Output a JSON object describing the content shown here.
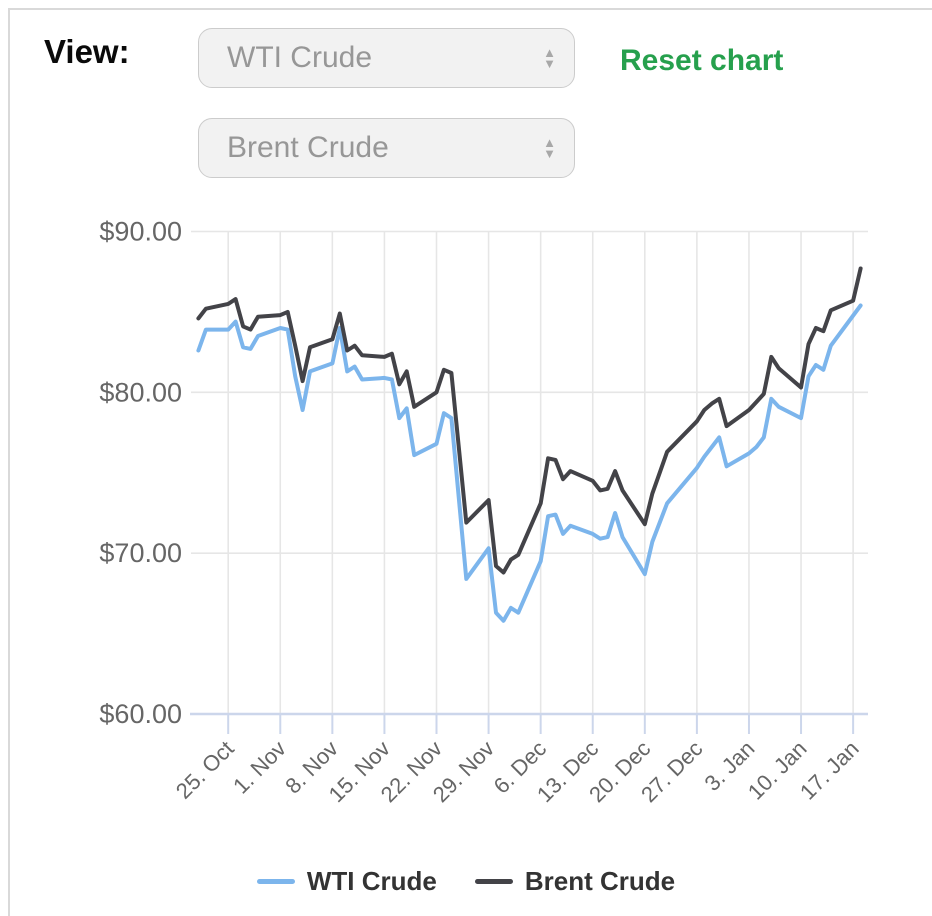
{
  "header": {
    "view_label": "View:",
    "reset_label": "Reset chart",
    "selects": [
      {
        "value": "WTI Crude"
      },
      {
        "value": "Brent Crude"
      }
    ],
    "arrow_up_glyph": "▲",
    "arrow_down_glyph": "▼"
  },
  "colors": {
    "reset_link": "#26a04d",
    "select_background": "#f2f2f2",
    "select_text": "#979797",
    "frame_border": "#d9d9d9"
  },
  "chart_data": {
    "type": "line",
    "title": "",
    "xlabel": "",
    "ylabel": "",
    "ylim": [
      60,
      90
    ],
    "xlim": [
      "2021-10-20",
      "2022-01-19"
    ],
    "grid": true,
    "legend_position": "bottom",
    "grid_color": "#e6e6e6",
    "axis_color": "#ccd6eb",
    "tick_color": "#ccd6eb",
    "label_color": "#666666",
    "y_ticks": [
      {
        "value": 90,
        "label": "$90.00"
      },
      {
        "value": 80,
        "label": "$80.00"
      },
      {
        "value": 70,
        "label": "$70.00"
      },
      {
        "value": 60,
        "label": "$60.00"
      }
    ],
    "x_ticks": [
      {
        "date": "2021-10-25",
        "label": "25. Oct"
      },
      {
        "date": "2021-11-01",
        "label": "1. Nov"
      },
      {
        "date": "2021-11-08",
        "label": "8. Nov"
      },
      {
        "date": "2021-11-15",
        "label": "15. Nov"
      },
      {
        "date": "2021-11-22",
        "label": "22. Nov"
      },
      {
        "date": "2021-11-29",
        "label": "29. Nov"
      },
      {
        "date": "2021-12-06",
        "label": "6. Dec"
      },
      {
        "date": "2021-12-13",
        "label": "13. Dec"
      },
      {
        "date": "2021-12-20",
        "label": "20. Dec"
      },
      {
        "date": "2021-12-27",
        "label": "27. Dec"
      },
      {
        "date": "2022-01-03",
        "label": "3. Jan"
      },
      {
        "date": "2022-01-10",
        "label": "10. Jan"
      },
      {
        "date": "2022-01-17",
        "label": "17. Jan"
      }
    ],
    "series": [
      {
        "name": "WTI Crude",
        "color": "#7cb5ec",
        "points": [
          [
            "2021-10-21",
            82.6
          ],
          [
            "2021-10-22",
            83.9
          ],
          [
            "2021-10-25",
            83.9
          ],
          [
            "2021-10-26",
            84.4
          ],
          [
            "2021-10-27",
            82.8
          ],
          [
            "2021-10-28",
            82.7
          ],
          [
            "2021-10-29",
            83.5
          ],
          [
            "2021-11-01",
            84.0
          ],
          [
            "2021-11-02",
            83.9
          ],
          [
            "2021-11-03",
            81.0
          ],
          [
            "2021-11-04",
            78.9
          ],
          [
            "2021-11-05",
            81.3
          ],
          [
            "2021-11-08",
            81.8
          ],
          [
            "2021-11-09",
            84.0
          ],
          [
            "2021-11-10",
            81.3
          ],
          [
            "2021-11-11",
            81.6
          ],
          [
            "2021-11-12",
            80.8
          ],
          [
            "2021-11-15",
            80.9
          ],
          [
            "2021-11-16",
            80.8
          ],
          [
            "2021-11-17",
            78.4
          ],
          [
            "2021-11-18",
            79.0
          ],
          [
            "2021-11-19",
            76.1
          ],
          [
            "2021-11-22",
            76.8
          ],
          [
            "2021-11-23",
            78.7
          ],
          [
            "2021-11-24",
            78.4
          ],
          [
            "2021-11-26",
            68.4
          ],
          [
            "2021-11-29",
            70.3
          ],
          [
            "2021-11-30",
            66.3
          ],
          [
            "2021-12-01",
            65.8
          ],
          [
            "2021-12-02",
            66.6
          ],
          [
            "2021-12-03",
            66.3
          ],
          [
            "2021-12-06",
            69.5
          ],
          [
            "2021-12-07",
            72.3
          ],
          [
            "2021-12-08",
            72.4
          ],
          [
            "2021-12-09",
            71.2
          ],
          [
            "2021-12-10",
            71.7
          ],
          [
            "2021-12-13",
            71.2
          ],
          [
            "2021-12-14",
            70.9
          ],
          [
            "2021-12-15",
            71.0
          ],
          [
            "2021-12-16",
            72.5
          ],
          [
            "2021-12-17",
            71.0
          ],
          [
            "2021-12-20",
            68.7
          ],
          [
            "2021-12-21",
            70.7
          ],
          [
            "2021-12-22",
            71.9
          ],
          [
            "2021-12-23",
            73.1
          ],
          [
            "2021-12-27",
            75.3
          ],
          [
            "2021-12-28",
            76.0
          ],
          [
            "2021-12-29",
            76.6
          ],
          [
            "2021-12-30",
            77.2
          ],
          [
            "2021-12-31",
            75.4
          ],
          [
            "2022-01-03",
            76.2
          ],
          [
            "2022-01-04",
            76.6
          ],
          [
            "2022-01-05",
            77.2
          ],
          [
            "2022-01-06",
            79.6
          ],
          [
            "2022-01-07",
            79.1
          ],
          [
            "2022-01-10",
            78.4
          ],
          [
            "2022-01-11",
            81.0
          ],
          [
            "2022-01-12",
            81.7
          ],
          [
            "2022-01-13",
            81.4
          ],
          [
            "2022-01-14",
            82.9
          ],
          [
            "2022-01-18",
            85.4
          ]
        ]
      },
      {
        "name": "Brent Crude",
        "color": "#434348",
        "points": [
          [
            "2021-10-21",
            84.6
          ],
          [
            "2021-10-22",
            85.2
          ],
          [
            "2021-10-25",
            85.5
          ],
          [
            "2021-10-26",
            85.8
          ],
          [
            "2021-10-27",
            84.1
          ],
          [
            "2021-10-28",
            83.9
          ],
          [
            "2021-10-29",
            84.7
          ],
          [
            "2021-11-01",
            84.8
          ],
          [
            "2021-11-02",
            85.0
          ],
          [
            "2021-11-03",
            82.9
          ],
          [
            "2021-11-04",
            80.7
          ],
          [
            "2021-11-05",
            82.8
          ],
          [
            "2021-11-08",
            83.3
          ],
          [
            "2021-11-09",
            84.9
          ],
          [
            "2021-11-10",
            82.6
          ],
          [
            "2021-11-11",
            82.9
          ],
          [
            "2021-11-12",
            82.3
          ],
          [
            "2021-11-15",
            82.2
          ],
          [
            "2021-11-16",
            82.4
          ],
          [
            "2021-11-17",
            80.5
          ],
          [
            "2021-11-18",
            81.3
          ],
          [
            "2021-11-19",
            79.1
          ],
          [
            "2021-11-22",
            80.0
          ],
          [
            "2021-11-23",
            81.4
          ],
          [
            "2021-11-24",
            81.2
          ],
          [
            "2021-11-26",
            71.9
          ],
          [
            "2021-11-29",
            73.3
          ],
          [
            "2021-11-30",
            69.2
          ],
          [
            "2021-12-01",
            68.8
          ],
          [
            "2021-12-02",
            69.6
          ],
          [
            "2021-12-03",
            69.9
          ],
          [
            "2021-12-06",
            73.1
          ],
          [
            "2021-12-07",
            75.9
          ],
          [
            "2021-12-08",
            75.8
          ],
          [
            "2021-12-09",
            74.6
          ],
          [
            "2021-12-10",
            75.1
          ],
          [
            "2021-12-13",
            74.5
          ],
          [
            "2021-12-14",
            73.9
          ],
          [
            "2021-12-15",
            74.0
          ],
          [
            "2021-12-16",
            75.1
          ],
          [
            "2021-12-17",
            73.9
          ],
          [
            "2021-12-20",
            71.8
          ],
          [
            "2021-12-21",
            73.7
          ],
          [
            "2021-12-22",
            75.0
          ],
          [
            "2021-12-23",
            76.3
          ],
          [
            "2021-12-27",
            78.2
          ],
          [
            "2021-12-28",
            78.9
          ],
          [
            "2021-12-29",
            79.3
          ],
          [
            "2021-12-30",
            79.6
          ],
          [
            "2021-12-31",
            77.9
          ],
          [
            "2022-01-03",
            78.9
          ],
          [
            "2022-01-04",
            79.4
          ],
          [
            "2022-01-05",
            79.9
          ],
          [
            "2022-01-06",
            82.2
          ],
          [
            "2022-01-07",
            81.5
          ],
          [
            "2022-01-10",
            80.3
          ],
          [
            "2022-01-11",
            83.0
          ],
          [
            "2022-01-12",
            84.0
          ],
          [
            "2022-01-13",
            83.8
          ],
          [
            "2022-01-14",
            85.1
          ],
          [
            "2022-01-17",
            85.7
          ],
          [
            "2022-01-18",
            87.7
          ]
        ]
      }
    ]
  }
}
